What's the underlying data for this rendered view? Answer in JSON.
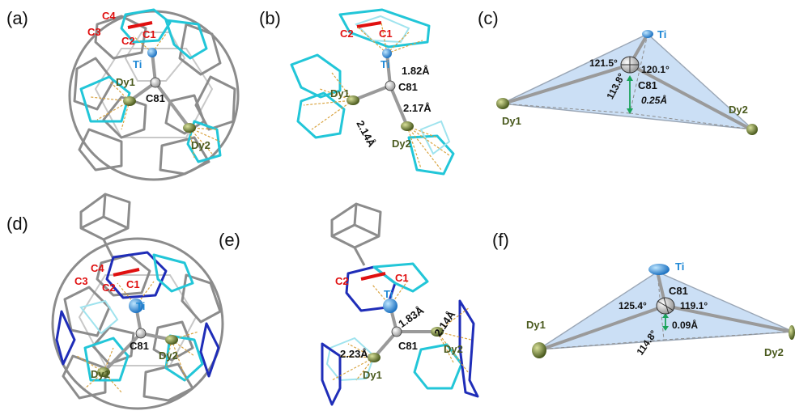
{
  "panels": {
    "a": {
      "label": "(a)",
      "atoms": {
        "c4": "C4",
        "c3": "C3",
        "c2": "C2",
        "c1": "C1",
        "ti": "Ti",
        "dy1": "Dy1",
        "c81": "C81",
        "dy2": "Dy2"
      }
    },
    "b": {
      "label": "(b)",
      "atoms": {
        "c2": "C2",
        "c1": "C1",
        "ti": "Ti",
        "dy1": "Dy1",
        "c81": "C81",
        "dy2": "Dy2"
      },
      "distances": {
        "ti_c81": "1.82Å",
        "dy1_c81": "2.14Å",
        "dy2_c81": "2.17Å"
      }
    },
    "c": {
      "label": "(c)",
      "atoms": {
        "ti": "Ti",
        "c81": "C81",
        "dy1": "Dy1",
        "dy2": "Dy2"
      },
      "angles": {
        "a1": "121.5°",
        "a2": "120.1°",
        "a3": "113.8°"
      },
      "offset": "0.25Å"
    },
    "d": {
      "label": "(d)",
      "atoms": {
        "c4": "C4",
        "c3": "C3",
        "c2": "C2",
        "c1": "C1",
        "ti": "Ti",
        "dy1": "Dy1",
        "c81": "C81",
        "dy2": "Dy2"
      }
    },
    "e": {
      "label": "(e)",
      "atoms": {
        "c2": "C2",
        "c1": "C1",
        "ti": "Ti",
        "dy1": "Dy1",
        "c81": "C81",
        "dy2": "Dy2"
      },
      "distances": {
        "ti_c81": "1.83Å",
        "dy1_c81": "2.23Å",
        "dy2_c81": "2.14Å"
      }
    },
    "f": {
      "label": "(f)",
      "atoms": {
        "ti": "Ti",
        "c81": "C81",
        "dy1": "Dy1",
        "dy2": "Dy2"
      },
      "angles": {
        "a1": "125.4°",
        "a2": "119.1°",
        "a3": "114.8°"
      },
      "offset": "0.09Å"
    }
  },
  "colors": {
    "ti": "#1e88d6",
    "dy": "#6b7a2a",
    "carbon_label": "#e01010",
    "cage": "#8c8c8c",
    "cyan_ring": "#22c6d8",
    "blue_ring": "#1f2db8",
    "plane": "#b9d4f2"
  }
}
